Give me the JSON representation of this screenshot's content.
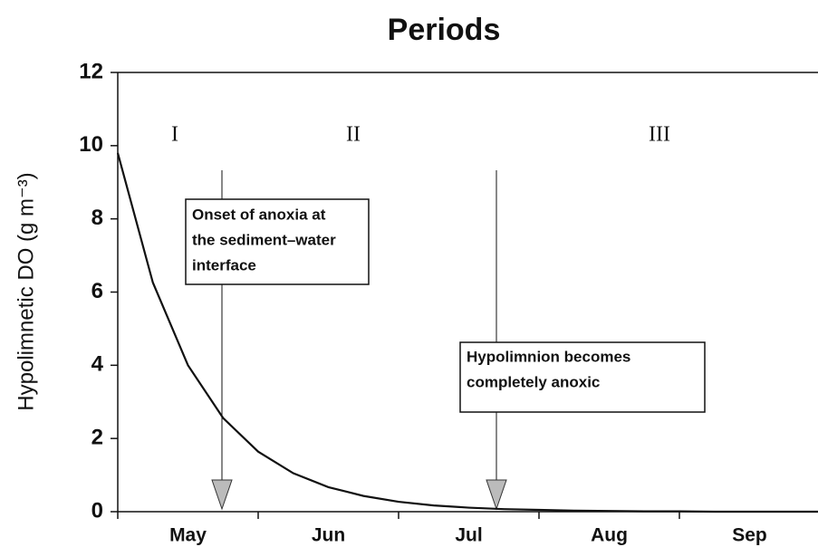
{
  "chart_data": {
    "type": "line",
    "title": "Periods",
    "y_label": "Hypolimnetic DO (g m⁻³)",
    "categories": [
      null,
      null,
      "May",
      null,
      null,
      null,
      "Jun",
      null,
      null,
      null,
      "Jul",
      null,
      null,
      null,
      "Aug",
      null,
      null,
      null,
      "Sep",
      null,
      null
    ],
    "values": [
      9.8,
      6.26,
      4.0,
      2.56,
      1.64,
      1.05,
      0.67,
      0.43,
      0.27,
      0.17,
      0.11,
      0.07,
      0.05,
      0.03,
      0.02,
      0.01,
      0.01,
      0,
      0,
      0,
      0
    ],
    "color": "#111111",
    "ylim": [
      0,
      12
    ],
    "yticks": [
      0,
      2,
      4,
      6,
      8,
      10,
      12
    ],
    "grid": false,
    "period_labels": [
      "I",
      "II",
      "III"
    ],
    "annotations": [
      [
        "Onset of anoxia at",
        "the sediment–water",
        "interface"
      ],
      [
        "Hypolimnion becomes",
        "completely anoxic"
      ]
    ]
  }
}
